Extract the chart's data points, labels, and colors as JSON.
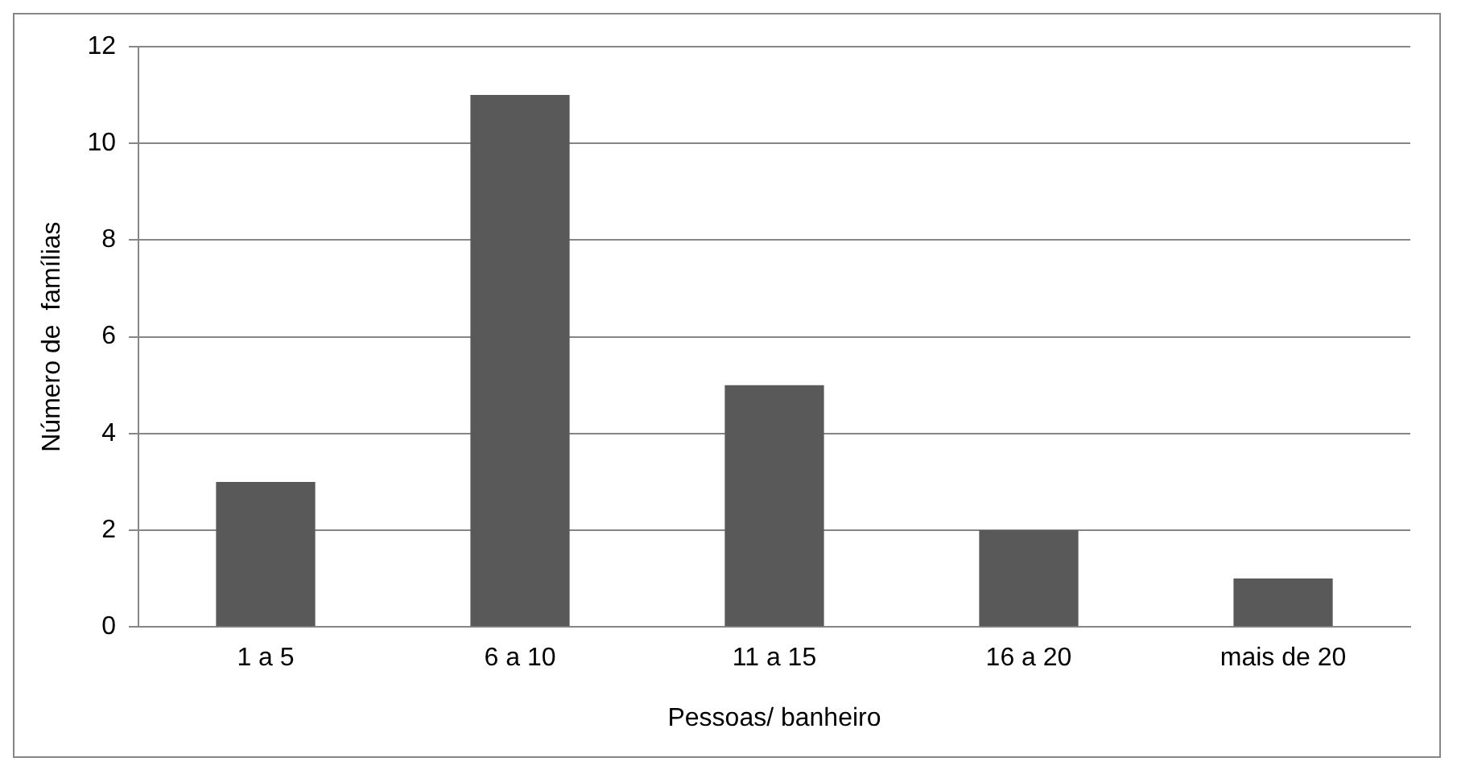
{
  "chart_data": {
    "type": "bar",
    "xlabel": "Pessoas/ banheiro",
    "ylabel": "Número de  famílias",
    "categories": [
      "1 a 5",
      "6 a 10",
      "11 a 15",
      "16 a 20",
      "mais de 20"
    ],
    "values": [
      3,
      11,
      5,
      2,
      1
    ],
    "color": "#595959",
    "ylim": [
      0,
      12
    ],
    "yticks": [
      0,
      2,
      4,
      6,
      8,
      10,
      12
    ],
    "grid": "y",
    "legend": false
  }
}
